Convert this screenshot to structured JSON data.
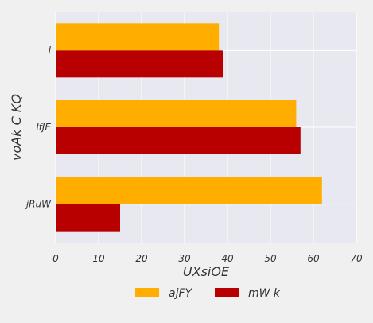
{
  "chart_data": {
    "type": "bar",
    "orientation": "horizontal",
    "categories": [
      "l",
      "lfJE",
      "jRuW"
    ],
    "series": [
      {
        "name": "ajFY",
        "values": [
          38,
          56,
          62
        ],
        "color": "#ffae00"
      },
      {
        "name": "mW k",
        "values": [
          39,
          57,
          15
        ],
        "color": "#b80000"
      }
    ],
    "xlabel": "UXsiOE",
    "ylabel": "voAk C KQ",
    "xlim": [
      0,
      70
    ],
    "xticks": [
      "0",
      "10",
      "20",
      "30",
      "40",
      "50",
      "60",
      "70"
    ],
    "grid": true,
    "legend_position": "bottom-center",
    "plot_background": "#e8e8f0",
    "figure_background": "#f0f0f0"
  }
}
